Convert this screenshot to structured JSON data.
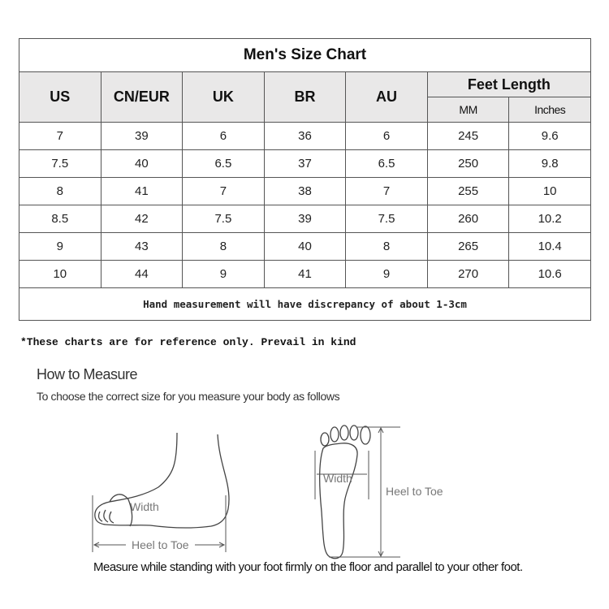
{
  "chart": {
    "title": "Men's Size Chart",
    "headers": [
      "US",
      "CN/EUR",
      "UK",
      "BR",
      "AU"
    ],
    "feet_length": {
      "label": "Feet Length",
      "sub": [
        "MM",
        "Inches"
      ]
    },
    "rows": [
      [
        "7",
        "39",
        "6",
        "36",
        "6",
        "245",
        "9.6"
      ],
      [
        "7.5",
        "40",
        "6.5",
        "37",
        "6.5",
        "250",
        "9.8"
      ],
      [
        "8",
        "41",
        "7",
        "38",
        "7",
        "255",
        "10"
      ],
      [
        "8.5",
        "42",
        "7.5",
        "39",
        "7.5",
        "260",
        "10.2"
      ],
      [
        "9",
        "43",
        "8",
        "40",
        "8",
        "265",
        "10.4"
      ],
      [
        "10",
        "44",
        "9",
        "41",
        "9",
        "270",
        "10.6"
      ]
    ],
    "footer": "Hand measurement will have discrepancy of about 1-3cm"
  },
  "note": "*These charts are for reference only. Prevail in kind",
  "measure": {
    "title": "How to Measure",
    "subtitle": "To choose the correct size for you measure your body as follows",
    "side_width_label": "Width",
    "side_length_label": "Heel to Toe",
    "sole_width_label": "Width",
    "sole_length_label": "Heel to Toe",
    "caption": "Measure while standing with your foot firmly on the floor and parallel to your other foot."
  }
}
